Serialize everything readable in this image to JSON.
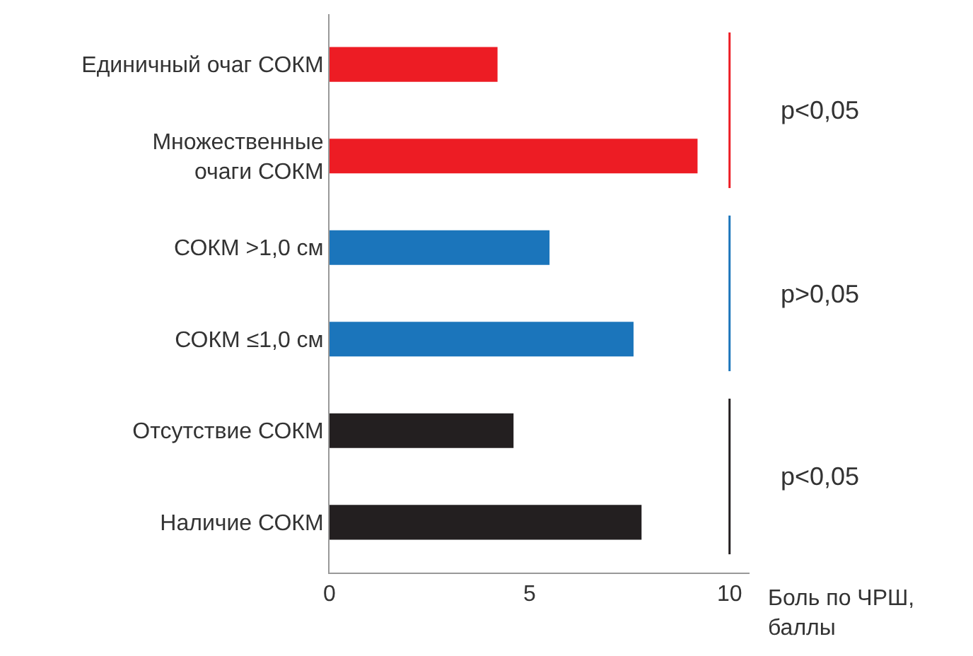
{
  "chart_data": {
    "type": "bar",
    "orientation": "horizontal",
    "categories": [
      "Единичный очаг СОКМ",
      "Множественные очаги СОКМ",
      "СОКМ >1,0 см",
      "СОКМ ≤1,0 см",
      "Отсутствие СОКМ",
      "Наличие СОКМ"
    ],
    "values": [
      4.2,
      9.2,
      5.5,
      7.6,
      4.6,
      7.8
    ],
    "colors": [
      "#ed1c24",
      "#ed1c24",
      "#1b75bb",
      "#1b75bb",
      "#231f20",
      "#231f20"
    ],
    "xlim": [
      0,
      10.5
    ],
    "xticks": [
      0,
      5,
      10
    ],
    "xlabel": "Боль по ЧРШ, баллы",
    "annotations": [
      "p<0,05",
      "p>0,05",
      "p<0,05"
    ],
    "grid": false
  }
}
